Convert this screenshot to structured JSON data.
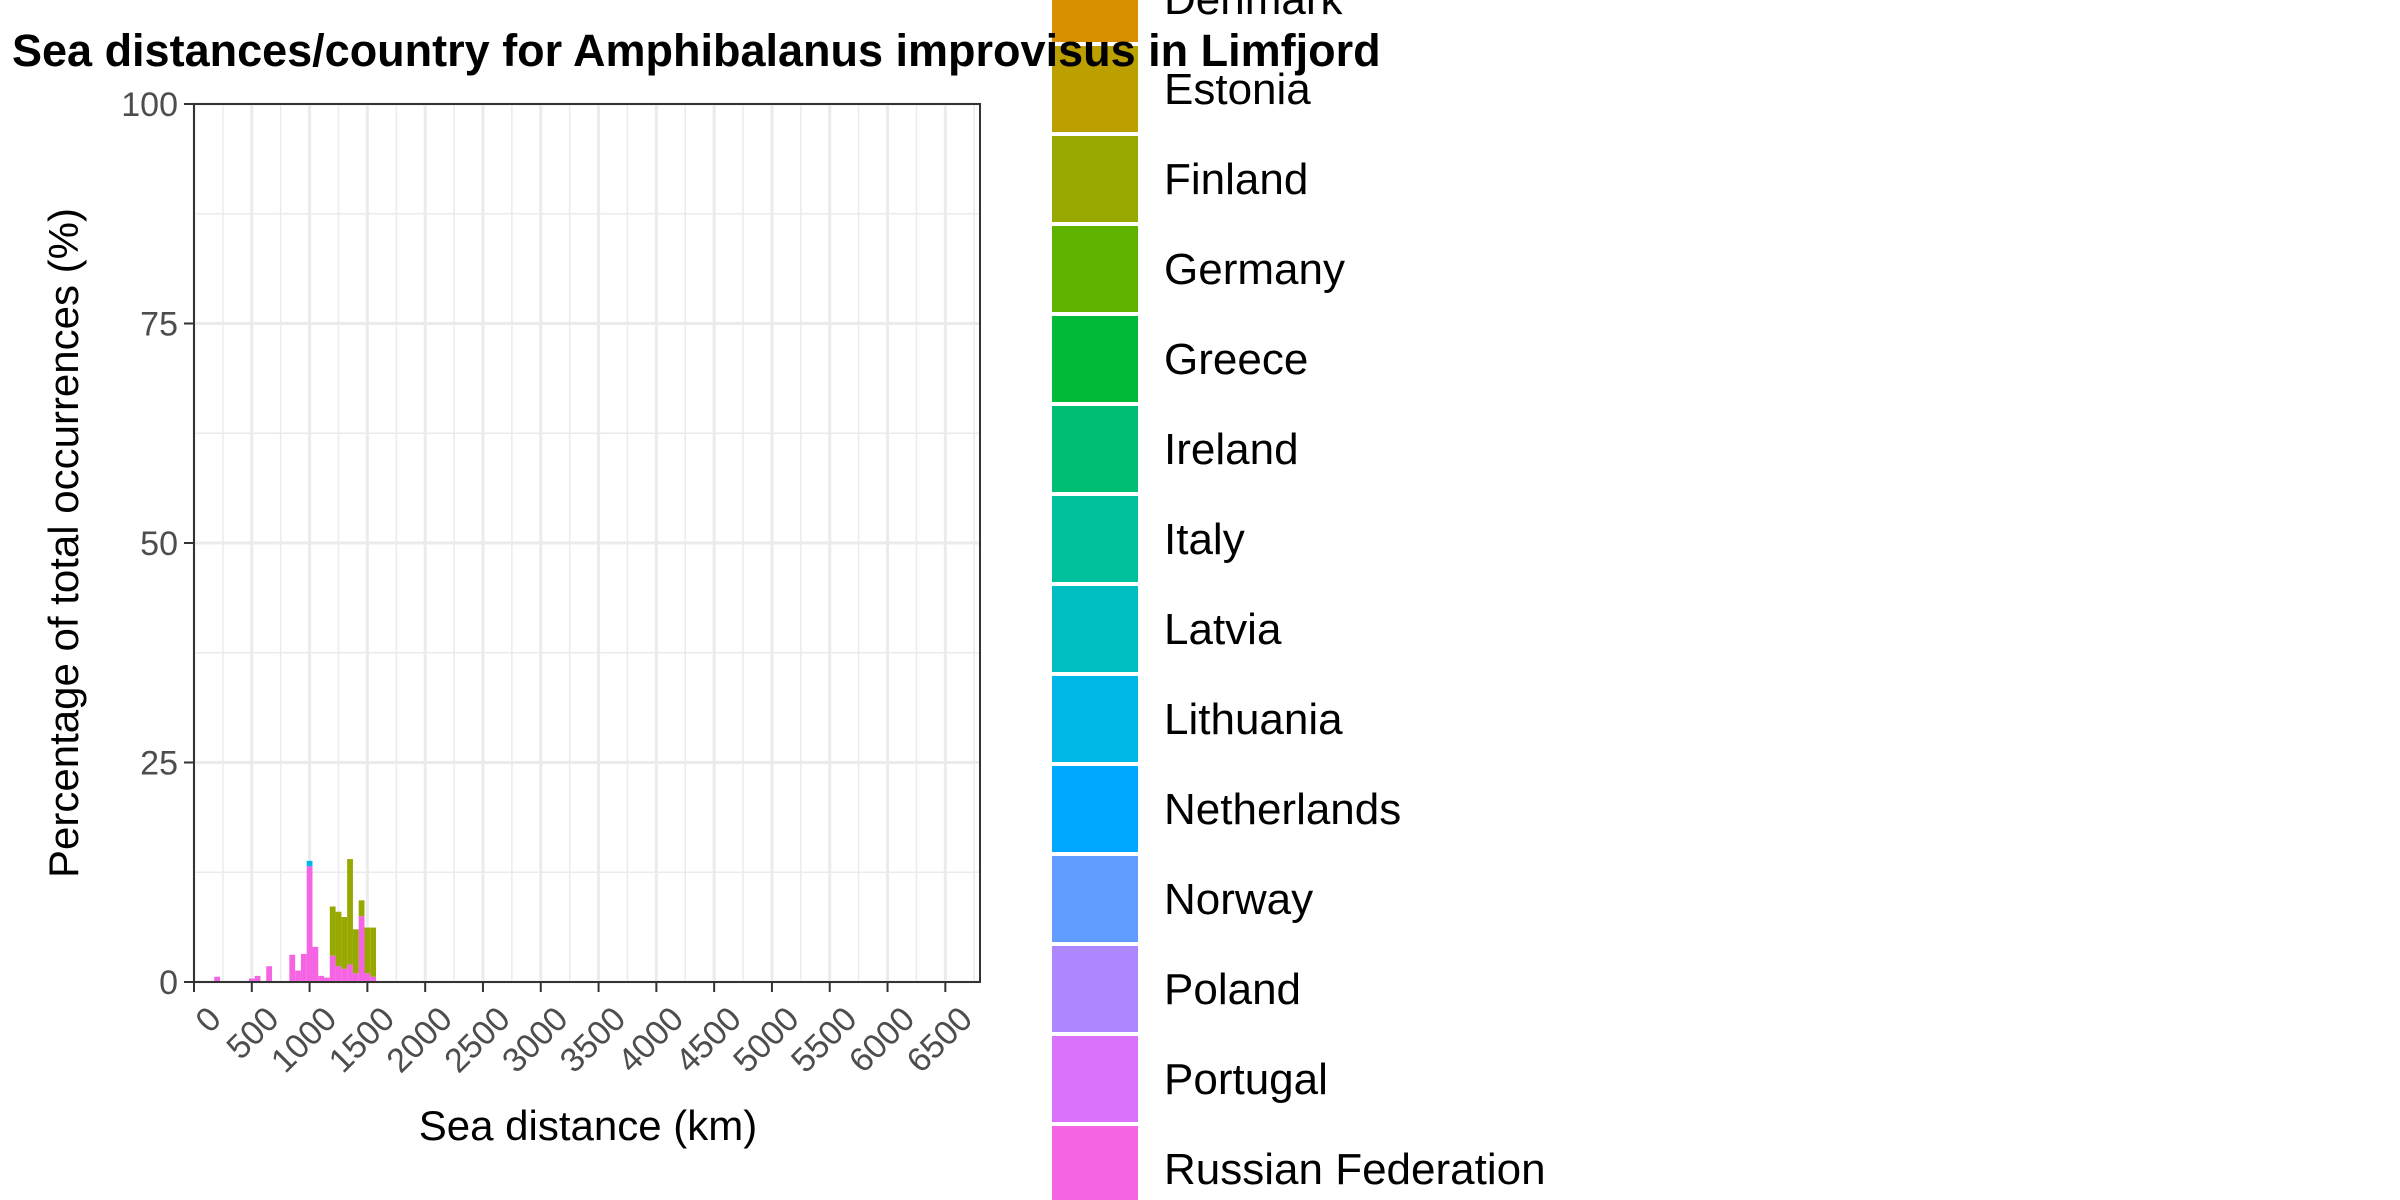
{
  "chart_data": {
    "type": "bar",
    "stacked": true,
    "title": "Sea distances/country for Amphibalanus improvisus in Limfjord",
    "xlabel": "Sea distance (km)",
    "ylabel": "Percentage of total occurrences (%)",
    "xlim": [
      0,
      6800
    ],
    "ylim": [
      0,
      100
    ],
    "xticks": [
      0,
      500,
      1000,
      1500,
      2000,
      2500,
      3000,
      3500,
      4000,
      4500,
      5000,
      5500,
      6000,
      6500
    ],
    "xtick_labels": [
      "0",
      "500",
      "1000",
      "1500",
      "2000",
      "2500",
      "3000",
      "3500",
      "4000",
      "4500",
      "5000",
      "5500",
      "6000",
      "6500"
    ],
    "yticks": [
      0,
      25,
      50,
      75,
      100
    ],
    "ytick_labels": [
      "0",
      "25",
      "50",
      "75",
      "100"
    ],
    "grid": true,
    "bin_width": 50,
    "legend": {
      "placement": "right",
      "entries": [
        {
          "label": "Denmark",
          "color": "#D89000"
        },
        {
          "label": "Estonia",
          "color": "#BCA000"
        },
        {
          "label": "Finland",
          "color": "#97A900"
        },
        {
          "label": "Germany",
          "color": "#5EB300"
        },
        {
          "label": "Greece",
          "color": "#00BA38"
        },
        {
          "label": "Ireland",
          "color": "#00BF74"
        },
        {
          "label": "Italy",
          "color": "#00C19C"
        },
        {
          "label": "Latvia",
          "color": "#00BFC4"
        },
        {
          "label": "Lithuania",
          "color": "#00B8E7"
        },
        {
          "label": "Netherlands",
          "color": "#00A9FF"
        },
        {
          "label": "Norway",
          "color": "#619CFF"
        },
        {
          "label": "Poland",
          "color": "#AE87FF"
        },
        {
          "label": "Portugal",
          "color": "#DB72FB"
        },
        {
          "label": "Russian Federation",
          "color": "#F564E3"
        }
      ]
    },
    "bins": [
      {
        "x": 200,
        "segments": [
          {
            "country": "Russian Federation",
            "value": 0.6
          }
        ]
      },
      {
        "x": 500,
        "segments": [
          {
            "country": "Russian Federation",
            "value": 0.4
          }
        ]
      },
      {
        "x": 550,
        "segments": [
          {
            "country": "Russian Federation",
            "value": 0.7
          }
        ]
      },
      {
        "x": 650,
        "segments": [
          {
            "country": "Russian Federation",
            "value": 1.8
          }
        ]
      },
      {
        "x": 850,
        "segments": [
          {
            "country": "Russian Federation",
            "value": 3.1
          }
        ]
      },
      {
        "x": 900,
        "segments": [
          {
            "country": "Russian Federation",
            "value": 1.3
          }
        ]
      },
      {
        "x": 950,
        "segments": [
          {
            "country": "Russian Federation",
            "value": 3.2
          }
        ]
      },
      {
        "x": 1000,
        "segments": [
          {
            "country": "Russian Federation",
            "value": 13.2
          },
          {
            "country": "Lithuania",
            "value": 0.6
          }
        ]
      },
      {
        "x": 1050,
        "segments": [
          {
            "country": "Russian Federation",
            "value": 4.0
          }
        ]
      },
      {
        "x": 1100,
        "segments": [
          {
            "country": "Russian Federation",
            "value": 0.7
          }
        ]
      },
      {
        "x": 1150,
        "segments": [
          {
            "country": "Russian Federation",
            "value": 0.5
          }
        ]
      },
      {
        "x": 1200,
        "segments": [
          {
            "country": "Russian Federation",
            "value": 3.0
          },
          {
            "country": "Finland",
            "value": 5.6
          }
        ]
      },
      {
        "x": 1250,
        "segments": [
          {
            "country": "Russian Federation",
            "value": 1.8
          },
          {
            "country": "Finland",
            "value": 6.2
          }
        ]
      },
      {
        "x": 1300,
        "segments": [
          {
            "country": "Russian Federation",
            "value": 1.5
          },
          {
            "country": "Finland",
            "value": 5.9
          }
        ]
      },
      {
        "x": 1350,
        "segments": [
          {
            "country": "Russian Federation",
            "value": 2.0
          },
          {
            "country": "Finland",
            "value": 12.0
          }
        ]
      },
      {
        "x": 1400,
        "segments": [
          {
            "country": "Russian Federation",
            "value": 1.0
          },
          {
            "country": "Finland",
            "value": 5.0
          }
        ]
      },
      {
        "x": 1450,
        "segments": [
          {
            "country": "Russian Federation",
            "value": 7.5
          },
          {
            "country": "Finland",
            "value": 1.8
          }
        ]
      },
      {
        "x": 1500,
        "segments": [
          {
            "country": "Russian Federation",
            "value": 1.0
          },
          {
            "country": "Finland",
            "value": 5.2
          }
        ]
      },
      {
        "x": 1550,
        "segments": [
          {
            "country": "Russian Federation",
            "value": 0.6
          },
          {
            "country": "Finland",
            "value": 5.6
          }
        ]
      }
    ]
  }
}
